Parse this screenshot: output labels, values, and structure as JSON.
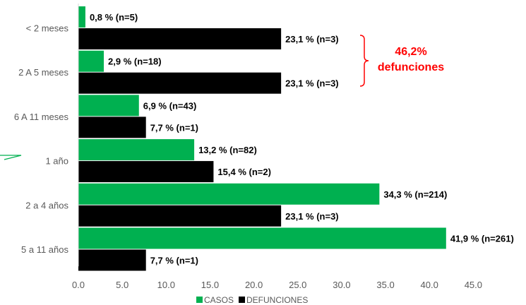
{
  "chart_data": {
    "type": "bar",
    "orientation": "horizontal",
    "categories": [
      "< 2 meses",
      "2 A 5 meses",
      "6 A 11 meses",
      "1 año",
      "2 a 4 años",
      "5 a 11 años"
    ],
    "series": [
      {
        "name": "CASOS",
        "color": "#00b050",
        "values": [
          0.8,
          2.9,
          6.9,
          13.2,
          34.3,
          41.9
        ],
        "labels": [
          "0,8 % (n=5)",
          "2,9 % (n=18)",
          "6,9 % (n=43)",
          "13,2 % (n=82)",
          "34,3 % (n=214)",
          "41,9 % (n=261)"
        ]
      },
      {
        "name": "DEFUNCIONES",
        "color": "#000000",
        "values": [
          23.1,
          23.1,
          7.7,
          15.4,
          23.1,
          7.7
        ],
        "labels": [
          "23,1 % (n=3)",
          "23,1 % (n=3)",
          "7,7 % (n=1)",
          "15,4 % (n=2)",
          "23,1 % (n=3)",
          "7,7 % (n=1)"
        ]
      }
    ],
    "xlim": [
      0,
      45
    ],
    "xticks": [
      "0.0",
      "5.0",
      "10.0",
      "15.0",
      "20.0",
      "25.0",
      "30.0",
      "35.0",
      "40.0",
      "45.0"
    ],
    "grid": false,
    "legend_position": "bottom",
    "annotation": {
      "lines": [
        "46,2%",
        "defunciones"
      ],
      "color": "#ff0000",
      "spans_categories": [
        "< 2 meses",
        "2 A 5 meses"
      ]
    }
  }
}
